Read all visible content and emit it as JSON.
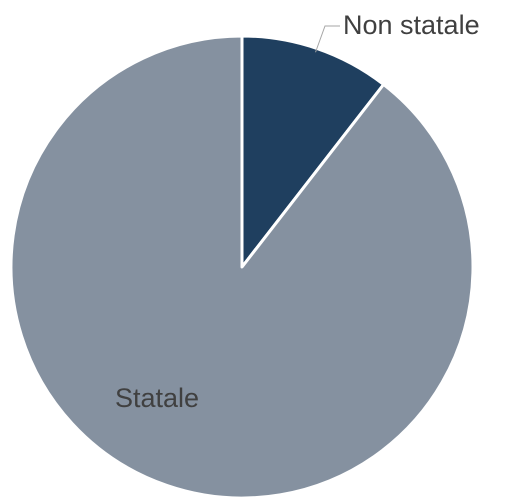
{
  "chart_data": {
    "type": "pie",
    "title": "",
    "slices": [
      {
        "label": "Non statale",
        "value": 10.5,
        "color": "#1f3f5f"
      },
      {
        "label": "Statale",
        "value": 89.5,
        "color": "#8591a0"
      }
    ],
    "start_angle": "12 o'clock",
    "direction": "clockwise",
    "label_placement": "Non statale outside with leader line; Statale inside",
    "separator_color": "#ffffff"
  }
}
